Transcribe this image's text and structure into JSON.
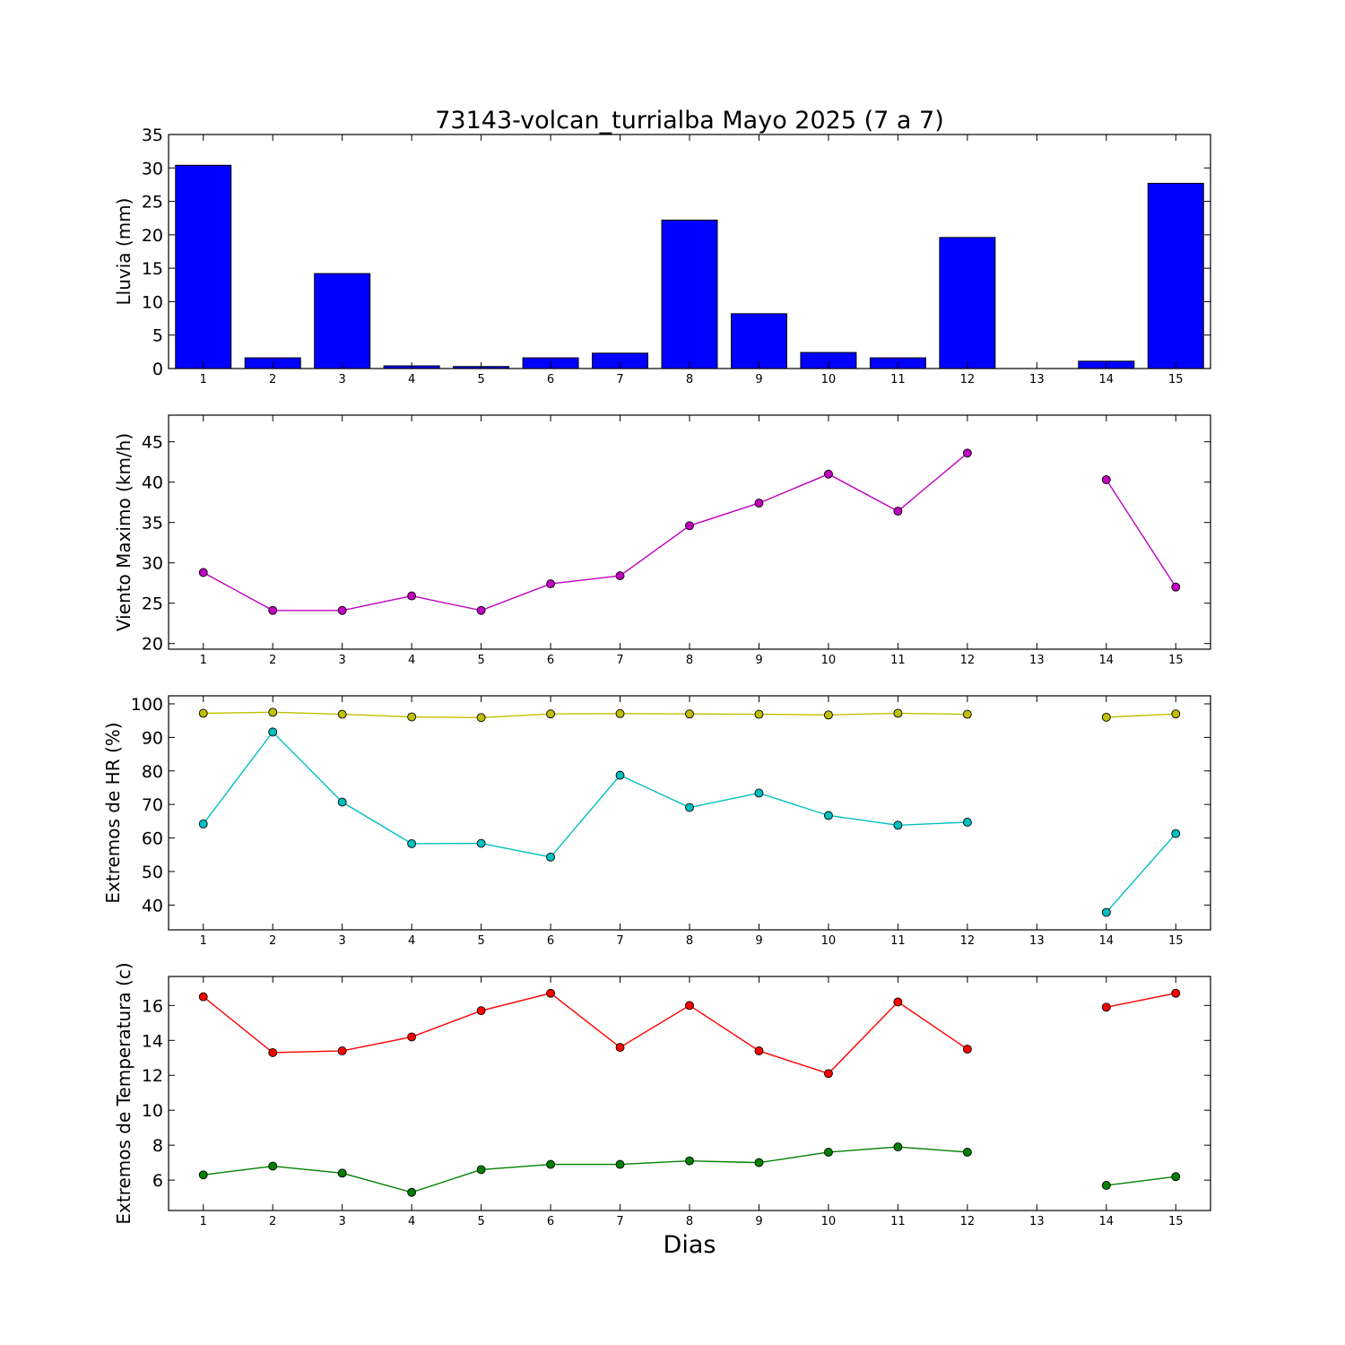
{
  "title": "73143-volcan_turrialba Mayo 2025  (7 a 7)",
  "xlabel": "Dias",
  "chart_data": [
    {
      "id": "lluvia",
      "type": "bar",
      "ylabel": "Lluvia (mm)",
      "ylim": [
        0,
        35
      ],
      "yticks": [
        0,
        5,
        10,
        15,
        20,
        25,
        30,
        35
      ],
      "xlim": [
        0.5,
        15.5
      ],
      "xticks": [
        1,
        2,
        3,
        4,
        5,
        6,
        7,
        8,
        9,
        10,
        11,
        12,
        13,
        14,
        15
      ],
      "series": [
        {
          "color": "#0000ff",
          "values": [
            30.4,
            1.6,
            14.2,
            0.4,
            0.3,
            1.6,
            2.3,
            22.2,
            8.2,
            2.4,
            1.6,
            19.6,
            null,
            1.1,
            27.7
          ]
        }
      ]
    },
    {
      "id": "viento",
      "type": "line",
      "ylabel": "Viento Maximo (km/h)",
      "ylim": [
        19.3,
        48.3
      ],
      "yticks": [
        20,
        25,
        30,
        35,
        40,
        45
      ],
      "xlim": [
        0.5,
        15.5
      ],
      "xticks": [
        1,
        2,
        3,
        4,
        5,
        6,
        7,
        8,
        9,
        10,
        11,
        12,
        13,
        14,
        15
      ],
      "series": [
        {
          "color": "#bf00bf",
          "values": [
            28.8,
            24.1,
            24.1,
            25.9,
            24.1,
            27.4,
            28.4,
            34.6,
            37.4,
            41.0,
            36.4,
            43.6,
            null,
            40.3,
            27.0
          ]
        }
      ]
    },
    {
      "id": "hr",
      "type": "line",
      "ylabel": "Extremos de HR (%)",
      "ylim": [
        32.6,
        102.4
      ],
      "yticks": [
        40,
        50,
        60,
        70,
        80,
        90,
        100
      ],
      "xlim": [
        0.5,
        15.5
      ],
      "xticks": [
        1,
        2,
        3,
        4,
        5,
        6,
        7,
        8,
        9,
        10,
        11,
        12,
        13,
        14,
        15
      ],
      "series": [
        {
          "color": "#bfbf00",
          "values": [
            97.2,
            97.5,
            96.9,
            96.1,
            95.9,
            97.0,
            97.1,
            97.0,
            96.9,
            96.7,
            97.2,
            96.9,
            null,
            96.0,
            97.0
          ]
        },
        {
          "color": "#00bfbf",
          "values": [
            64.2,
            91.6,
            70.7,
            58.3,
            58.4,
            54.3,
            78.7,
            69.1,
            73.4,
            66.7,
            63.8,
            64.7,
            null,
            37.8,
            61.3
          ]
        }
      ]
    },
    {
      "id": "temperatura",
      "type": "line",
      "ylabel": "Extremos de Temperatura (c)",
      "ylim": [
        4.26,
        17.66
      ],
      "yticks": [
        6,
        8,
        10,
        12,
        14,
        16
      ],
      "xlim": [
        0.5,
        15.5
      ],
      "xticks": [
        1,
        2,
        3,
        4,
        5,
        6,
        7,
        8,
        9,
        10,
        11,
        12,
        13,
        14,
        15
      ],
      "series": [
        {
          "color": "#ff0000",
          "values": [
            16.5,
            13.3,
            13.4,
            14.2,
            15.7,
            16.7,
            13.6,
            16.0,
            13.4,
            12.1,
            16.2,
            13.5,
            null,
            15.9,
            16.7
          ]
        },
        {
          "color": "#008000",
          "values": [
            6.3,
            6.8,
            6.4,
            5.3,
            6.6,
            6.9,
            6.9,
            7.1,
            7.0,
            7.6,
            7.9,
            7.6,
            null,
            5.7,
            6.2
          ]
        }
      ]
    }
  ]
}
